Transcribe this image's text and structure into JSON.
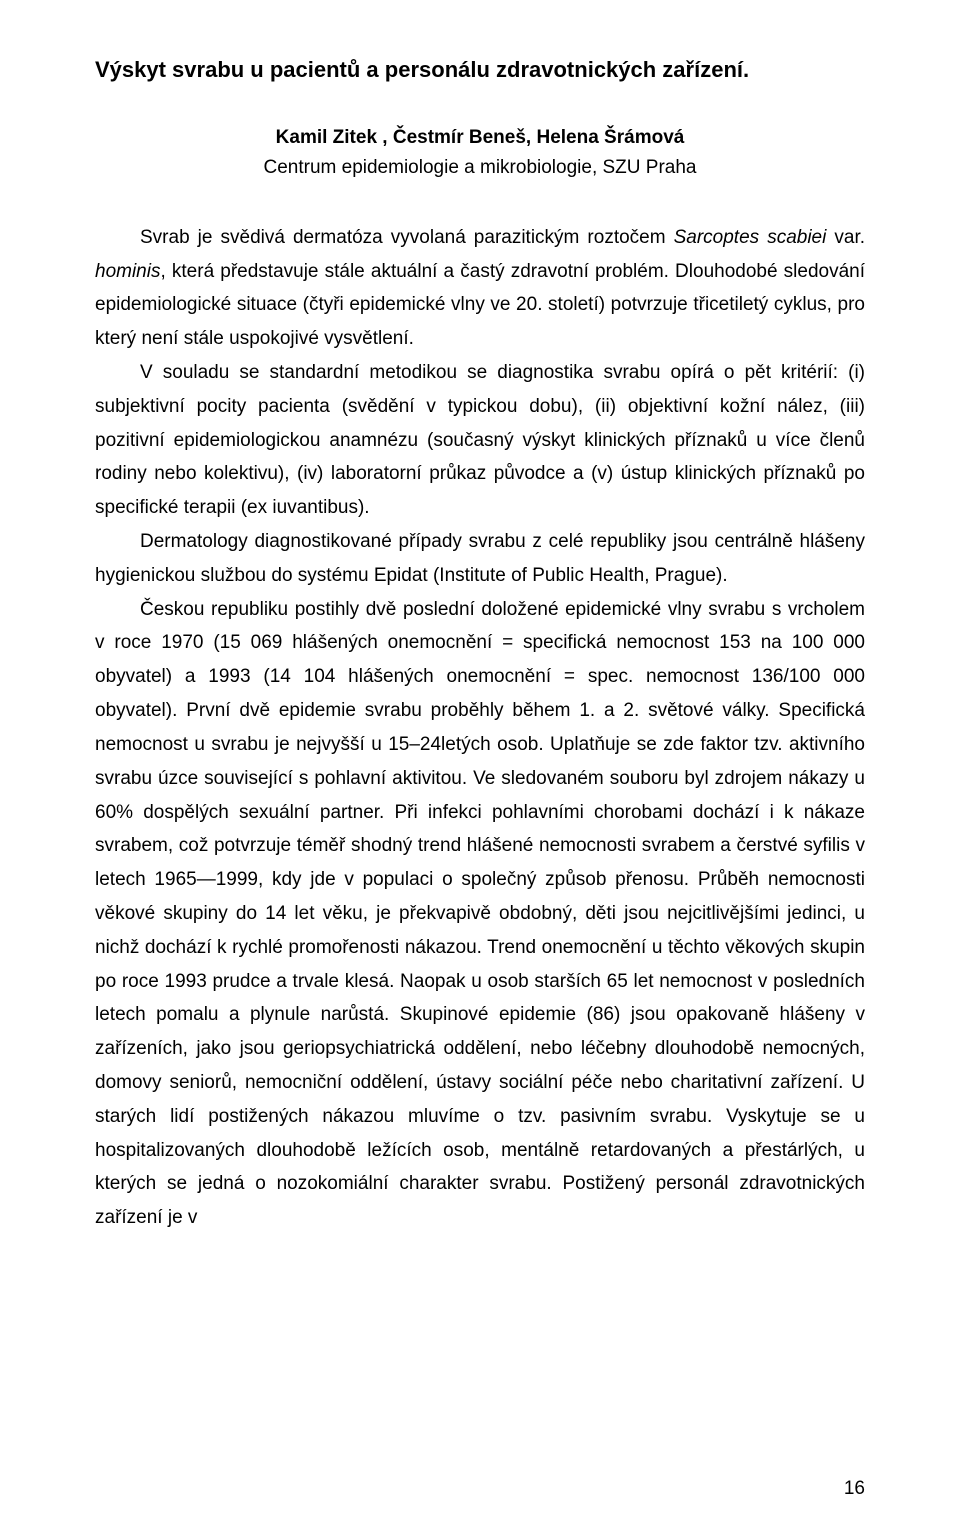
{
  "title": "Výskyt svrabu u pacientů a personálu zdravotnických zařízení.",
  "authors": "Kamil Zitek , Čestmír Beneš, Helena Šrámová",
  "affiliation": "Centrum epidemiologie a mikrobiologie, SZU Praha",
  "para1_pre": "Svrab je svědivá dermatóza vyvolaná parazitickým roztočem ",
  "para1_it1": "Sarcoptes scabiei",
  "para1_mid1": " var. ",
  "para1_it2": "hominis",
  "para1_post": ", která představuje stále aktuální a častý zdravotní problém. Dlouhodobé sledování epidemiologické situace (čtyři epidemické vlny ve 20. století) potvrzuje třicetiletý cyklus, pro který není stále uspokojivé vysvětlení.",
  "para2": "V souladu se standardní metodikou se diagnostika svrabu opírá o pět kritérií: (i) subjektivní pocity pacienta (svědění v typickou dobu), (ii) objektivní kožní nález, (iii) pozitivní epidemiologickou anamnézu (současný výskyt klinických příznaků u více členů rodiny nebo kolektivu), (iv) laboratorní průkaz původce a (v) ústup klinických příznaků po specifické terapii (ex iuvantibus).",
  "para3": "Dermatology diagnostikované případy svrabu z celé republiky jsou centrálně hlášeny hygienickou službou do systému Epidat (Institute of Public Health, Prague).",
  "para4": "Českou republiku postihly dvě poslední doložené epidemické vlny svrabu s vrcholem v roce 1970 (15 069 hlášených onemocnění = specifická nemocnost 153 na 100 000 obyvatel) a 1993 (14 104 hlášených onemocnění = spec. nemocnost 136/100 000 obyvatel). První dvě epidemie svrabu proběhly během 1. a 2. světové války. Specifická nemocnost u svrabu je nejvyšší u 15–24letých osob. Uplatňuje se zde faktor tzv. aktivního svrabu úzce související s pohlavní aktivitou. Ve sledovaném souboru byl zdrojem nákazy u 60% dospělých sexuální partner. Při infekci pohlavními chorobami dochází i k nákaze svrabem, což potvrzuje téměř shodný trend hlášené nemocnosti svrabem a čerstvé syfilis v letech 1965—1999, kdy jde v populaci o společný způsob přenosu. Průběh nemocnosti věkové skupiny do 14 let věku, je překvapivě obdobný, děti jsou nejcitlivějšími jedinci, u nichž dochází k rychlé promořenosti nákazou. Trend onemocnění u těchto věkových skupin po roce 1993 prudce a trvale klesá. Naopak u osob starších 65 let nemocnost v posledních letech pomalu a plynule narůstá. Skupinové epidemie (86) jsou opakovaně hlášeny v zařízeních, jako jsou geriopsychiatrická oddělení, nebo léčebny dlouhodobě nemocných, domovy seniorů, nemocniční oddělení, ústavy sociální péče nebo charitativní zařízení. U starých lidí postižených nákazou mluvíme o tzv. pasivním svrabu. Vyskytuje se u hospitalizovaných dlouhodobě ležících osob, mentálně retardovaných a přestárlých, u kterých se jedná o nozokomiální charakter svrabu. Postižený personál zdravotnických zařízení je v",
  "page_number": "16"
}
